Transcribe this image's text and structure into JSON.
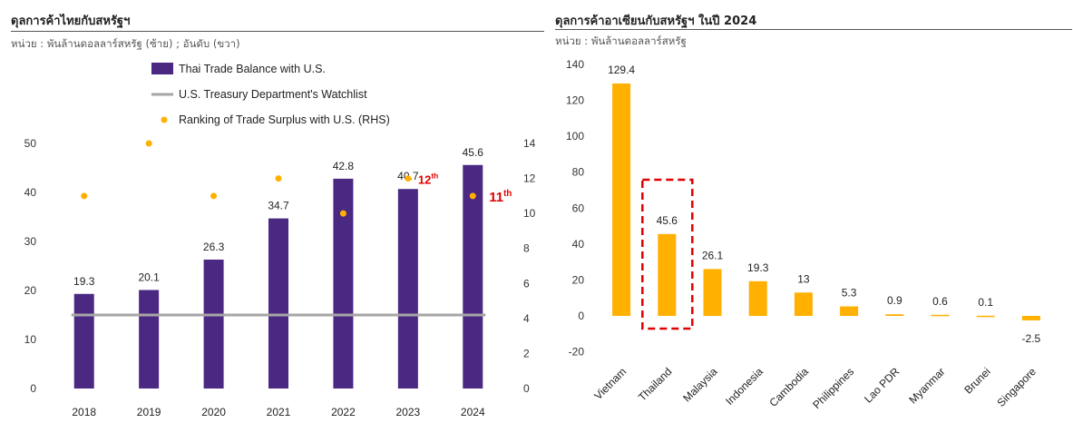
{
  "left_panel": {
    "title": "ดุลการค้าไทยกับสหรัฐฯ",
    "subtitle": "หน่วย : พันล้านดอลลาร์สหรัฐ (ซ้าย) ; อันดับ (ขวา)"
  },
  "right_panel": {
    "title": "ดุลการค้าอาเซียนกับสหรัฐฯ ในปี 2024",
    "subtitle": "หน่วย : พันล้านดอลลาร์สหรัฐ"
  },
  "chart_data": [
    {
      "type": "bar",
      "categories": [
        "2018",
        "2019",
        "2020",
        "2021",
        "2022",
        "2023",
        "2024"
      ],
      "series": [
        {
          "name": "Thai Trade Balance with U.S.",
          "type": "bar",
          "axis": "left",
          "values": [
            19.3,
            20.1,
            26.3,
            34.7,
            42.8,
            40.7,
            45.6
          ],
          "color": "#4b2882"
        },
        {
          "name": "U.S. Treasury Department's Watchlist",
          "type": "line",
          "axis": "left",
          "values": [
            15,
            15,
            15,
            15,
            15,
            15,
            15
          ],
          "color": "#a6a6a6"
        },
        {
          "name": "Ranking of Trade Surplus with U.S. (RHS)",
          "type": "scatter",
          "axis": "right",
          "values": [
            11,
            14,
            11,
            12,
            10,
            12,
            11
          ],
          "color": "#ffb000"
        }
      ],
      "y_left": {
        "min": 0,
        "max": 50,
        "ticks": [
          0,
          10,
          20,
          30,
          40,
          50
        ]
      },
      "y_right": {
        "min": 0,
        "max": 14,
        "ticks": [
          0,
          2,
          4,
          6,
          8,
          10,
          12,
          14
        ]
      },
      "data_labels": [
        "19.3",
        "20.1",
        "26.3",
        "34.7",
        "42.8",
        "40.7",
        "45.6"
      ],
      "annotations": [
        {
          "category": "2023",
          "base": "12",
          "sup": "th",
          "color": "#e00000"
        },
        {
          "category": "2024",
          "base": "11",
          "sup": "th",
          "color": "#e00000"
        }
      ],
      "legend_position": "top",
      "grid": false
    },
    {
      "type": "bar",
      "categories": [
        "Vietnam",
        "Thailand",
        "Malaysia",
        "Indonesia",
        "Cambodia",
        "Philippines",
        "Lao PDR",
        "Myanmar",
        "Brunei",
        "Singapore"
      ],
      "values": [
        129.4,
        45.6,
        26.1,
        19.3,
        13,
        5.3,
        0.9,
        0.6,
        0.1,
        -2.5
      ],
      "data_labels": [
        "129.4",
        "45.6",
        "26.1",
        "19.3",
        "13",
        "5.3",
        "0.9",
        "0.6",
        "0.1",
        "-2.5"
      ],
      "color": "#ffb000",
      "highlight": {
        "category": "Thailand",
        "style": "dashed-box",
        "color": "#e00000"
      },
      "y": {
        "min": -20,
        "max": 140,
        "ticks": [
          -20,
          0,
          20,
          40,
          60,
          80,
          100,
          120,
          140
        ]
      },
      "grid": false
    }
  ]
}
